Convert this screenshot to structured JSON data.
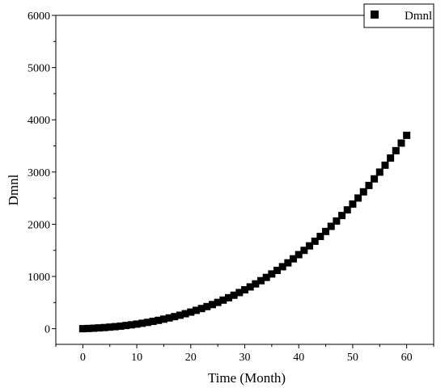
{
  "chart_data": {
    "type": "scatter",
    "xlabel": "Time (Month)",
    "ylabel": "Dmnl",
    "xlim": [
      -5,
      65
    ],
    "ylim": [
      -300,
      6000
    ],
    "xticks": [
      0,
      10,
      20,
      30,
      40,
      50,
      60
    ],
    "yticks": [
      0,
      1000,
      2000,
      3000,
      4000,
      5000,
      6000
    ],
    "grid": false,
    "legend": "top-right",
    "marker": "square",
    "color": "#000000",
    "series": [
      {
        "name": "Dmnl",
        "x": [
          0,
          1,
          2,
          3,
          4,
          5,
          6,
          7,
          8,
          9,
          10,
          11,
          12,
          13,
          14,
          15,
          16,
          17,
          18,
          19,
          20,
          21,
          22,
          23,
          24,
          25,
          26,
          27,
          28,
          29,
          30,
          31,
          32,
          33,
          34,
          35,
          36,
          37,
          38,
          39,
          40,
          41,
          42,
          43,
          44,
          45,
          46,
          47,
          48,
          49,
          50,
          51,
          52,
          53,
          54,
          55,
          56,
          57,
          58,
          59,
          60
        ],
        "y": [
          0,
          4,
          9,
          15,
          22,
          30,
          39,
          49,
          61,
          74,
          88,
          104,
          121,
          140,
          160,
          182,
          206,
          231,
          258,
          287,
          318,
          351,
          386,
          423,
          462,
          503,
          547,
          593,
          641,
          692,
          745,
          800,
          858,
          919,
          982,
          1048,
          1116,
          1187,
          1261,
          1338,
          1418,
          1500,
          1586,
          1675,
          1767,
          1862,
          1960,
          2062,
          2167,
          2275,
          2387,
          2502,
          2621,
          2743,
          2869,
          2998,
          3131,
          3268,
          3409,
          3554,
          3703
        ]
      }
    ]
  }
}
